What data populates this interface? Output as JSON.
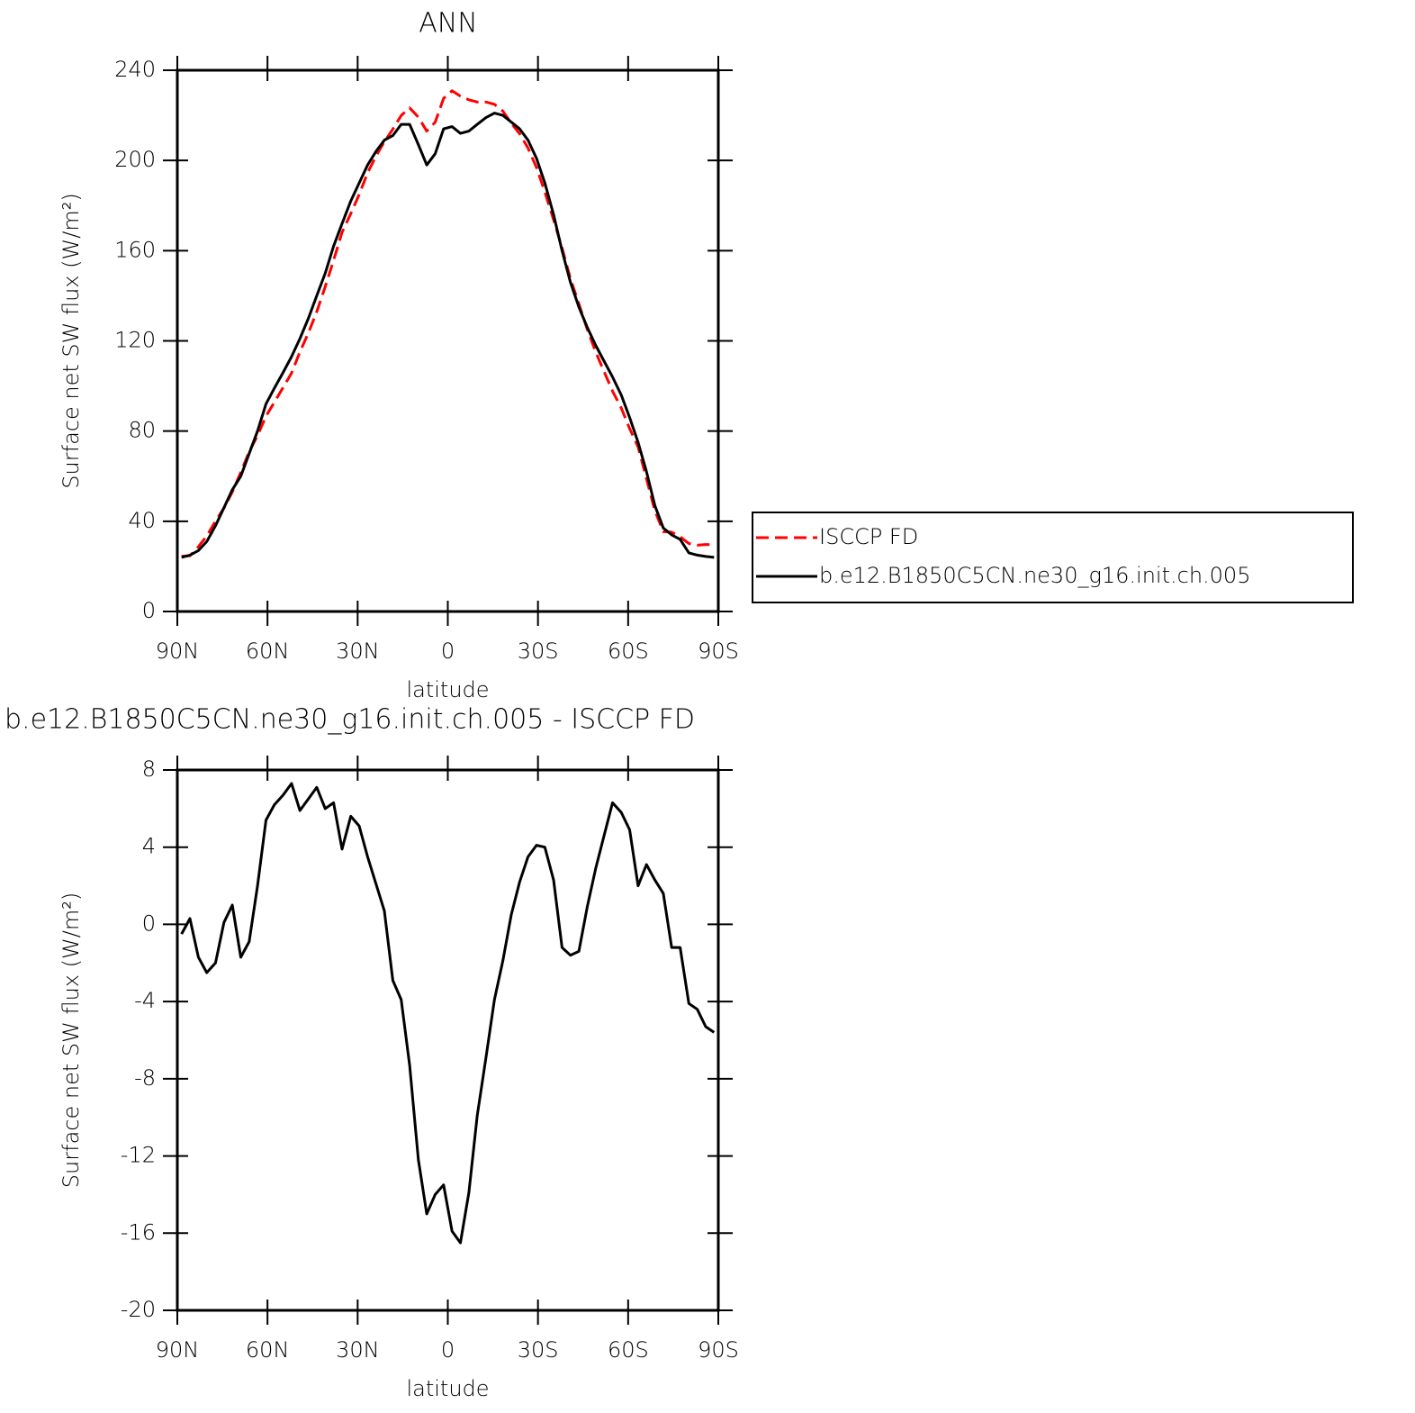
{
  "chart_data": [
    {
      "type": "line",
      "title": "ANN",
      "x_label": "latitude",
      "y_label": "Surface net SW flux (W/m²)",
      "x": [
        88.6,
        85.8,
        83.0,
        80.2,
        77.3,
        74.5,
        71.7,
        68.9,
        66.1,
        63.3,
        60.5,
        57.7,
        54.8,
        52.0,
        49.2,
        46.4,
        43.6,
        40.8,
        38.0,
        35.2,
        32.3,
        29.5,
        26.7,
        23.9,
        21.1,
        18.3,
        15.5,
        12.7,
        9.8,
        7.0,
        4.2,
        1.4,
        -1.4,
        -4.2,
        -7.0,
        -9.8,
        -12.7,
        -15.5,
        -18.3,
        -21.1,
        -23.9,
        -26.7,
        -29.5,
        -32.3,
        -35.2,
        -38.0,
        -40.8,
        -43.6,
        -46.4,
        -49.2,
        -52.0,
        -54.8,
        -57.7,
        -60.5,
        -63.3,
        -66.1,
        -68.9,
        -71.7,
        -74.5,
        -77.3,
        -80.2,
        -83.0,
        -85.8,
        -88.6
      ],
      "series": [
        {
          "name": "ISCCP FD",
          "color": "#ff0000",
          "dashed": true,
          "values": [
            24.5,
            24.7,
            28.7,
            33.5,
            40,
            45.9,
            53,
            61.7,
            70.9,
            78,
            86.6,
            92.8,
            99.3,
            105.7,
            115.1,
            123.5,
            132.9,
            144,
            155.7,
            168.1,
            176.4,
            184.9,
            194.5,
            201.9,
            208.3,
            213.9,
            219.9,
            223.3,
            219.2,
            213,
            217,
            227.5,
            230.9,
            228.5,
            226.9,
            225.9,
            225.9,
            224.9,
            221.9,
            216.5,
            211.8,
            205.5,
            196.9,
            186,
            173.7,
            161.2,
            147.6,
            136.4,
            125.1,
            115.1,
            106.4,
            97.7,
            90.2,
            81.1,
            73,
            58.9,
            44.7,
            35.4,
            35.2,
            33.2,
            30.1,
            29.4,
            29.7,
            29.6
          ]
        },
        {
          "name": "b.e12.B1850C5CN.ne30_g16.init.ch.005",
          "color": "#000000",
          "dashed": false,
          "values": [
            24,
            25,
            27,
            31,
            38,
            46,
            54,
            60,
            70,
            80,
            92,
            99,
            106,
            113,
            121,
            130,
            140,
            150,
            162,
            172,
            182,
            190,
            198,
            204,
            209,
            211,
            216,
            216,
            207,
            198,
            203,
            214,
            215,
            212,
            213,
            216,
            219,
            221,
            220,
            217,
            214,
            209,
            201,
            190,
            176,
            160,
            146,
            135,
            126,
            118,
            111,
            104,
            96,
            86,
            75,
            62,
            47,
            37,
            34,
            32,
            26,
            25,
            24.4,
            24
          ]
        }
      ],
      "xlim": [
        90,
        -90
      ],
      "xticks": [
        {
          "value": 90,
          "label": "90N"
        },
        {
          "value": 60,
          "label": "60N"
        },
        {
          "value": 30,
          "label": "30N"
        },
        0,
        {
          "value": -30,
          "label": "30S"
        },
        {
          "value": -60,
          "label": "60S"
        },
        {
          "value": -90,
          "label": "90S"
        }
      ],
      "ylim": [
        0,
        240
      ],
      "yticks": [
        0,
        40,
        80,
        120,
        160,
        200,
        240
      ],
      "legend": "right"
    },
    {
      "type": "line",
      "title": "b.e12.B1850C5CN.ne30_g16.init.ch.005 - ISCCP FD",
      "x_label": "latitude",
      "y_label": "Surface net SW flux (W/m²)",
      "x": [
        88.6,
        85.8,
        83.0,
        80.2,
        77.3,
        74.5,
        71.7,
        68.9,
        66.1,
        63.3,
        60.5,
        57.7,
        54.8,
        52.0,
        49.2,
        46.4,
        43.6,
        40.8,
        38.0,
        35.2,
        32.3,
        29.5,
        26.7,
        23.9,
        21.1,
        18.3,
        15.5,
        12.7,
        9.8,
        7.0,
        4.2,
        1.4,
        -1.4,
        -4.2,
        -7.0,
        -9.8,
        -12.7,
        -15.5,
        -18.3,
        -21.1,
        -23.9,
        -26.7,
        -29.5,
        -32.3,
        -35.2,
        -38.0,
        -40.8,
        -43.6,
        -46.4,
        -49.2,
        -52.0,
        -54.8,
        -57.7,
        -60.5,
        -63.3,
        -66.1,
        -68.9,
        -71.7,
        -74.5,
        -77.3,
        -80.2,
        -83.0,
        -85.8,
        -88.6
      ],
      "values": [
        -0.5,
        0.3,
        -1.7,
        -2.5,
        -2.0,
        0.1,
        1.0,
        -1.7,
        -0.9,
        2.0,
        5.4,
        6.2,
        6.7,
        7.3,
        5.9,
        6.5,
        7.1,
        6.0,
        6.3,
        3.9,
        5.6,
        5.1,
        3.5,
        2.1,
        0.7,
        -2.9,
        -3.9,
        -7.3,
        -12.2,
        -15.0,
        -14.0,
        -13.5,
        -15.9,
        -16.5,
        -13.9,
        -9.9,
        -6.9,
        -3.9,
        -1.9,
        0.5,
        2.2,
        3.5,
        4.1,
        4.0,
        2.3,
        -1.2,
        -1.6,
        -1.4,
        0.9,
        2.9,
        4.6,
        6.3,
        5.8,
        4.9,
        2.0,
        3.1,
        2.3,
        1.6,
        -1.2,
        -1.2,
        -4.1,
        -4.4,
        -5.3,
        -5.6
      ],
      "color": "#000000",
      "xlim": [
        90,
        -90
      ],
      "xticks": [
        {
          "value": 90,
          "label": "90N"
        },
        {
          "value": 60,
          "label": "60N"
        },
        {
          "value": 30,
          "label": "30N"
        },
        0,
        {
          "value": -30,
          "label": "30S"
        },
        {
          "value": -60,
          "label": "60S"
        },
        {
          "value": -90,
          "label": "90S"
        }
      ],
      "ylim": [
        -20,
        8
      ],
      "yticks": [
        -20,
        -16,
        -12,
        -8,
        -4,
        0,
        4,
        8
      ]
    }
  ]
}
